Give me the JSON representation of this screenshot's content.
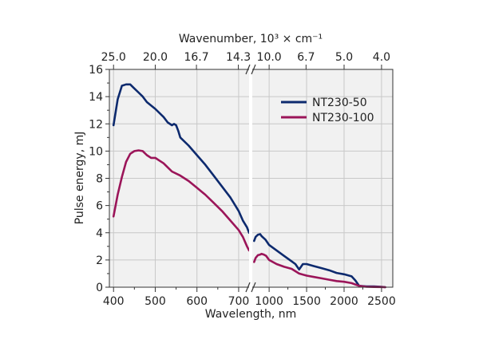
{
  "chart_data": {
    "type": "line",
    "xlabel": "Wavelength, nm",
    "x2label": "Wavenumber, 10³ × cm⁻¹",
    "ylabel": "Pulse energy, mJ",
    "ylim": [
      0,
      16
    ],
    "grid": true,
    "legend_position": "top-right",
    "x_axis_break": "between 720 nm and 780 nm",
    "left_segment_xlim": [
      390,
      725
    ],
    "right_segment_xlim": [
      775,
      2650
    ],
    "x_ticks_left": [
      "400",
      "500",
      "600",
      "700"
    ],
    "x_ticks_right": [
      "1000",
      "1500",
      "2000",
      "2500"
    ],
    "y_ticks": [
      "0",
      "2",
      "4",
      "6",
      "8",
      "10",
      "12",
      "14",
      "16"
    ],
    "top_ticks": [
      "25.0",
      "20.0",
      "16.7",
      "14.3",
      "10.0",
      "6.7",
      "5.0",
      "4.0"
    ],
    "series": [
      {
        "name": "NT230-50",
        "color": "#0d2a6e",
        "points": [
          [
            400,
            11.9
          ],
          [
            410,
            13.8
          ],
          [
            420,
            14.8
          ],
          [
            430,
            14.9
          ],
          [
            440,
            14.9
          ],
          [
            450,
            14.6
          ],
          [
            460,
            14.3
          ],
          [
            470,
            14.0
          ],
          [
            480,
            13.6
          ],
          [
            500,
            13.1
          ],
          [
            520,
            12.5
          ],
          [
            530,
            12.1
          ],
          [
            540,
            11.9
          ],
          [
            545,
            12.0
          ],
          [
            550,
            11.9
          ],
          [
            555,
            11.5
          ],
          [
            560,
            11.0
          ],
          [
            580,
            10.4
          ],
          [
            600,
            9.7
          ],
          [
            620,
            9.0
          ],
          [
            640,
            8.2
          ],
          [
            660,
            7.4
          ],
          [
            680,
            6.6
          ],
          [
            700,
            5.6
          ],
          [
            710,
            4.9
          ],
          [
            720,
            4.4
          ],
          [
            725,
            4.0
          ],
          [
            800,
            3.4
          ],
          [
            820,
            3.7
          ],
          [
            850,
            3.85
          ],
          [
            880,
            3.9
          ],
          [
            900,
            3.75
          ],
          [
            950,
            3.5
          ],
          [
            1000,
            3.1
          ],
          [
            1100,
            2.7
          ],
          [
            1200,
            2.3
          ],
          [
            1300,
            1.9
          ],
          [
            1350,
            1.7
          ],
          [
            1400,
            1.3
          ],
          [
            1450,
            1.7
          ],
          [
            1500,
            1.7
          ],
          [
            1600,
            1.55
          ],
          [
            1700,
            1.4
          ],
          [
            1800,
            1.25
          ],
          [
            1900,
            1.05
          ],
          [
            2000,
            0.95
          ],
          [
            2100,
            0.8
          ],
          [
            2150,
            0.5
          ],
          [
            2200,
            0.1
          ],
          [
            2300,
            0.05
          ],
          [
            2400,
            0.05
          ],
          [
            2500,
            0.03
          ],
          [
            2550,
            0.0
          ]
        ]
      },
      {
        "name": "NT230-100",
        "color": "#9b1559",
        "points": [
          [
            400,
            5.2
          ],
          [
            410,
            6.8
          ],
          [
            420,
            8.1
          ],
          [
            430,
            9.2
          ],
          [
            440,
            9.8
          ],
          [
            450,
            10.0
          ],
          [
            460,
            10.05
          ],
          [
            470,
            10.0
          ],
          [
            480,
            9.7
          ],
          [
            490,
            9.5
          ],
          [
            500,
            9.5
          ],
          [
            510,
            9.3
          ],
          [
            520,
            9.1
          ],
          [
            530,
            8.8
          ],
          [
            540,
            8.5
          ],
          [
            560,
            8.2
          ],
          [
            580,
            7.8
          ],
          [
            600,
            7.3
          ],
          [
            620,
            6.8
          ],
          [
            640,
            6.2
          ],
          [
            660,
            5.6
          ],
          [
            680,
            4.9
          ],
          [
            700,
            4.2
          ],
          [
            710,
            3.7
          ],
          [
            720,
            3.0
          ],
          [
            725,
            2.7
          ],
          [
            800,
            1.85
          ],
          [
            820,
            2.15
          ],
          [
            850,
            2.35
          ],
          [
            880,
            2.4
          ],
          [
            900,
            2.45
          ],
          [
            930,
            2.4
          ],
          [
            960,
            2.3
          ],
          [
            1000,
            2.0
          ],
          [
            1100,
            1.7
          ],
          [
            1200,
            1.5
          ],
          [
            1300,
            1.35
          ],
          [
            1400,
            1.0
          ],
          [
            1500,
            0.85
          ],
          [
            1600,
            0.75
          ],
          [
            1700,
            0.65
          ],
          [
            1800,
            0.55
          ],
          [
            1900,
            0.45
          ],
          [
            2000,
            0.4
          ],
          [
            2100,
            0.3
          ],
          [
            2200,
            0.1
          ],
          [
            2300,
            0.03
          ],
          [
            2400,
            0.02
          ],
          [
            2500,
            0.01
          ],
          [
            2550,
            0.0
          ]
        ]
      }
    ]
  }
}
